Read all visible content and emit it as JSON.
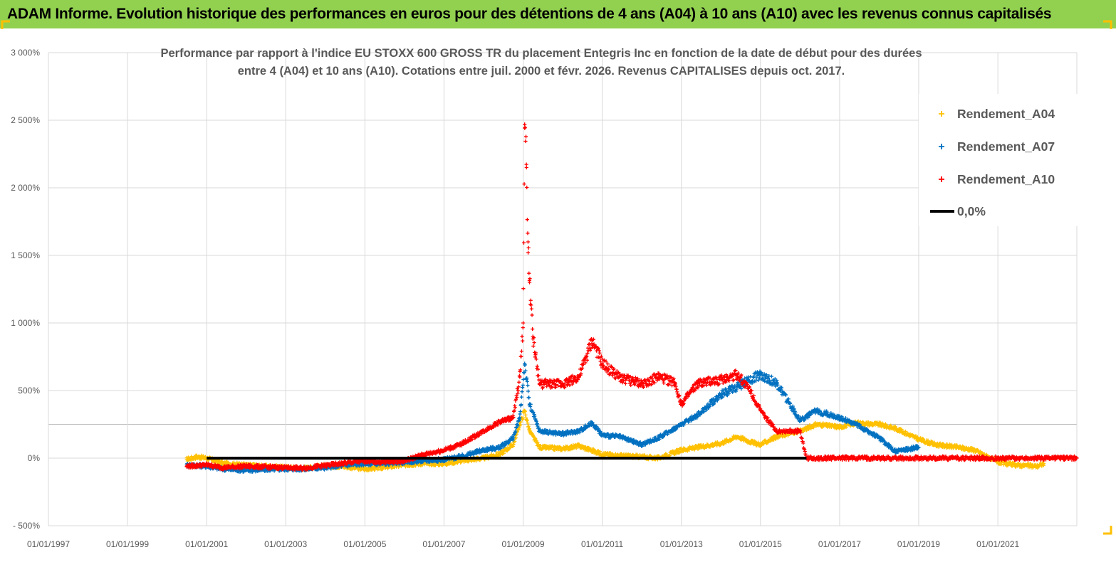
{
  "header": {
    "title": "ADAM Informe. Evolution historique des performances en euros pour des détentions de 4 ans (A04) à 10 ans (A10) avec les revenus connus capitalisés"
  },
  "colors": {
    "header_bg": "#92d050",
    "A04": "#ffc000",
    "A07": "#0070c0",
    "A10": "#ff0000",
    "zero_line": "#000000",
    "gridline": "#d9d9d9"
  },
  "chart_data": {
    "type": "scatter",
    "title_lines": [
      "Performance par rapport à l'indice EU STOXX 600 GROSS TR  du placement Entegris Inc en fonction de la date de début pour des durées",
      "entre 4 (A04) et 10 ans (A10).  Cotations entre juil. 2000 et févr. 2026. Revenus CAPITALISES depuis oct. 2017."
    ],
    "x_type": "date",
    "xlim": [
      "1997-01-01",
      "2022-12-31"
    ],
    "x_tick_labels": [
      "01/01/1997",
      "01/01/1999",
      "01/01/2001",
      "01/01/2003",
      "01/01/2005",
      "01/01/2007",
      "01/01/2009",
      "01/01/2011",
      "01/01/2013",
      "01/01/2015",
      "01/01/2017",
      "01/01/2019",
      "01/01/2021"
    ],
    "ylim": [
      -500,
      3000
    ],
    "y_unit": "%",
    "y_ticks": [
      -500,
      0,
      500,
      1000,
      1500,
      2000,
      2500,
      3000
    ],
    "y_tick_labels": [
      "- 500%",
      "0%",
      "500%",
      "1 000%",
      "1 500%",
      "2 000%",
      "2 500%",
      "3 000%"
    ],
    "grid": true,
    "legend_position": "top-right",
    "series": [
      {
        "name": "Rendement_A04",
        "marker": "plus",
        "color": "#ffc000",
        "points": [
          [
            "2000-07-01",
            -10
          ],
          [
            "2000-10-01",
            10
          ],
          [
            "2001-01-01",
            0
          ],
          [
            "2001-06-01",
            -40
          ],
          [
            "2002-01-01",
            -50
          ],
          [
            "2002-06-01",
            -60
          ],
          [
            "2003-01-01",
            -70
          ],
          [
            "2003-06-01",
            -75
          ],
          [
            "2004-01-01",
            -60
          ],
          [
            "2004-06-01",
            -60
          ],
          [
            "2005-01-01",
            -80
          ],
          [
            "2005-06-01",
            -70
          ],
          [
            "2006-01-01",
            -50
          ],
          [
            "2006-06-01",
            -40
          ],
          [
            "2007-01-01",
            -40
          ],
          [
            "2007-06-01",
            -20
          ],
          [
            "2008-01-01",
            0
          ],
          [
            "2008-06-01",
            30
          ],
          [
            "2008-10-01",
            100
          ],
          [
            "2008-12-01",
            250
          ],
          [
            "2009-01-15",
            350
          ],
          [
            "2009-03-01",
            200
          ],
          [
            "2009-06-01",
            80
          ],
          [
            "2010-01-01",
            70
          ],
          [
            "2010-06-01",
            90
          ],
          [
            "2011-01-01",
            30
          ],
          [
            "2011-06-01",
            20
          ],
          [
            "2012-01-01",
            10
          ],
          [
            "2012-06-01",
            0
          ],
          [
            "2013-01-01",
            60
          ],
          [
            "2013-06-01",
            80
          ],
          [
            "2014-01-01",
            110
          ],
          [
            "2014-06-01",
            160
          ],
          [
            "2014-10-01",
            120
          ],
          [
            "2015-01-01",
            100
          ],
          [
            "2015-06-01",
            160
          ],
          [
            "2016-01-01",
            200
          ],
          [
            "2016-06-01",
            250
          ],
          [
            "2017-01-01",
            230
          ],
          [
            "2017-06-01",
            260
          ],
          [
            "2018-01-01",
            250
          ],
          [
            "2018-06-01",
            220
          ],
          [
            "2019-01-01",
            140
          ],
          [
            "2019-06-01",
            100
          ],
          [
            "2020-01-01",
            80
          ],
          [
            "2020-06-01",
            60
          ],
          [
            "2021-01-01",
            -30
          ],
          [
            "2021-06-01",
            -50
          ],
          [
            "2022-01-01",
            -60
          ],
          [
            "2022-03-01",
            -40
          ]
        ]
      },
      {
        "name": "Rendement_A07",
        "marker": "plus",
        "color": "#0070c0",
        "points": [
          [
            "2000-07-01",
            -50
          ],
          [
            "2001-01-01",
            -60
          ],
          [
            "2001-06-01",
            -80
          ],
          [
            "2002-01-01",
            -90
          ],
          [
            "2002-06-01",
            -85
          ],
          [
            "2003-01-01",
            -80
          ],
          [
            "2003-06-01",
            -80
          ],
          [
            "2004-01-01",
            -70
          ],
          [
            "2004-06-01",
            -55
          ],
          [
            "2005-01-01",
            -40
          ],
          [
            "2005-06-01",
            -40
          ],
          [
            "2006-01-01",
            -30
          ],
          [
            "2006-06-01",
            -20
          ],
          [
            "2007-01-01",
            -10
          ],
          [
            "2007-06-01",
            10
          ],
          [
            "2008-01-01",
            60
          ],
          [
            "2008-06-01",
            80
          ],
          [
            "2008-10-01",
            150
          ],
          [
            "2008-12-01",
            300
          ],
          [
            "2009-01-15",
            700
          ],
          [
            "2009-03-01",
            400
          ],
          [
            "2009-06-01",
            200
          ],
          [
            "2010-01-01",
            180
          ],
          [
            "2010-06-01",
            200
          ],
          [
            "2010-10-01",
            260
          ],
          [
            "2011-01-01",
            170
          ],
          [
            "2011-06-01",
            160
          ],
          [
            "2012-01-01",
            100
          ],
          [
            "2012-06-01",
            150
          ],
          [
            "2013-01-01",
            250
          ],
          [
            "2013-06-01",
            320
          ],
          [
            "2014-01-01",
            470
          ],
          [
            "2014-06-01",
            530
          ],
          [
            "2015-01-01",
            620
          ],
          [
            "2015-06-01",
            550
          ],
          [
            "2016-01-01",
            280
          ],
          [
            "2016-06-01",
            350
          ],
          [
            "2017-01-01",
            300
          ],
          [
            "2017-06-01",
            250
          ],
          [
            "2018-01-01",
            150
          ],
          [
            "2018-06-01",
            50
          ],
          [
            "2019-01-01",
            80
          ]
        ]
      },
      {
        "name": "Rendement_A10",
        "marker": "plus",
        "color": "#ff0000",
        "points": [
          [
            "2000-07-01",
            -60
          ],
          [
            "2001-01-01",
            -50
          ],
          [
            "2001-06-01",
            -70
          ],
          [
            "2002-01-01",
            -60
          ],
          [
            "2002-06-01",
            -65
          ],
          [
            "2003-01-01",
            -70
          ],
          [
            "2003-06-01",
            -75
          ],
          [
            "2004-01-01",
            -55
          ],
          [
            "2004-06-01",
            -40
          ],
          [
            "2005-01-01",
            -20
          ],
          [
            "2005-06-01",
            -30
          ],
          [
            "2006-01-01",
            -20
          ],
          [
            "2006-06-01",
            20
          ],
          [
            "2007-01-01",
            60
          ],
          [
            "2007-06-01",
            100
          ],
          [
            "2008-01-01",
            200
          ],
          [
            "2008-06-01",
            270
          ],
          [
            "2008-10-01",
            300
          ],
          [
            "2008-12-01",
            600
          ],
          [
            "2009-01-01",
            1000
          ],
          [
            "2009-01-15",
            2470
          ],
          [
            "2009-02-01",
            2150
          ],
          [
            "2009-02-15",
            1600
          ],
          [
            "2009-03-01",
            1300
          ],
          [
            "2009-04-01",
            900
          ],
          [
            "2009-06-01",
            550
          ],
          [
            "2010-01-01",
            550
          ],
          [
            "2010-06-01",
            600
          ],
          [
            "2010-10-01",
            870
          ],
          [
            "2011-01-01",
            700
          ],
          [
            "2011-06-01",
            600
          ],
          [
            "2012-01-01",
            550
          ],
          [
            "2012-06-01",
            600
          ],
          [
            "2012-11-01",
            560
          ],
          [
            "2013-01-01",
            400
          ],
          [
            "2013-06-01",
            550
          ],
          [
            "2014-01-01",
            580
          ],
          [
            "2014-06-01",
            620
          ],
          [
            "2014-10-01",
            500
          ],
          [
            "2015-01-01",
            350
          ],
          [
            "2015-06-01",
            200
          ],
          [
            "2016-01-01",
            200
          ],
          [
            "2016-03-01",
            0
          ],
          [
            "2017-01-01",
            0
          ],
          [
            "2018-01-01",
            0
          ],
          [
            "2019-01-01",
            0
          ],
          [
            "2020-01-01",
            0
          ],
          [
            "2021-01-01",
            0
          ],
          [
            "2022-01-01",
            0
          ],
          [
            "2022-12-31",
            0
          ]
        ]
      },
      {
        "name": "0,0%",
        "marker": "line",
        "color": "#000000",
        "points": [
          [
            "2001-01-01",
            0
          ],
          [
            "2016-03-01",
            0
          ]
        ]
      }
    ]
  }
}
